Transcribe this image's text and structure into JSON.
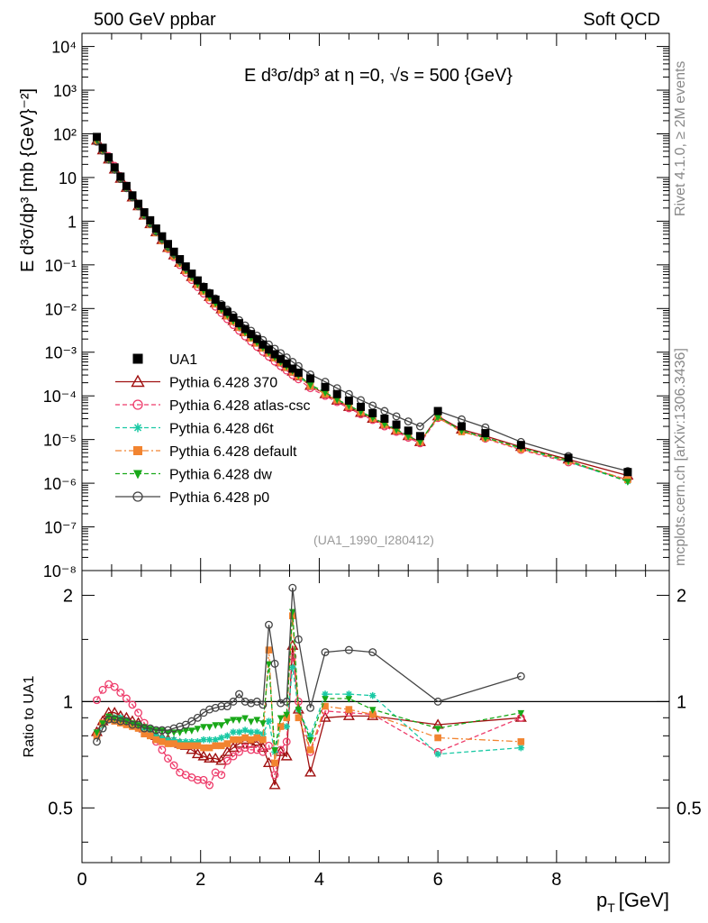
{
  "header": {
    "left": "500 GeV ppbar",
    "right": "Soft QCD"
  },
  "side": {
    "rivet": "Rivet 4.1.0, ≥ 2M events",
    "mcplots": "mcplots.cern.ch [arXiv:1306.3436]"
  },
  "chart_data": [
    {
      "type": "scatter",
      "title": "E d³σ/dp³ at η =0, √s = 500 {GeV}",
      "ylabel": "E d³σ/dp³ [mb {GeV}⁻²]",
      "yscale": "log",
      "ylim": [
        1e-08,
        20000.0
      ],
      "xlim": [
        0,
        9.9
      ],
      "ytick_labels": [
        "10⁻⁸",
        "10⁻⁷",
        "10⁻⁶",
        "10⁻⁵",
        "10⁻⁴",
        "10⁻³",
        "10⁻²",
        "10⁻¹",
        "1",
        "10",
        "10²",
        "10³",
        "10⁴"
      ],
      "watermark": "(UA1_1990_I280412)",
      "x": [
        0.25,
        0.35,
        0.45,
        0.55,
        0.65,
        0.75,
        0.85,
        0.95,
        1.05,
        1.15,
        1.25,
        1.35,
        1.45,
        1.55,
        1.65,
        1.75,
        1.85,
        1.95,
        2.05,
        2.15,
        2.25,
        2.35,
        2.45,
        2.55,
        2.65,
        2.75,
        2.85,
        2.95,
        3.05,
        3.15,
        3.25,
        3.35,
        3.45,
        3.55,
        3.65,
        3.85,
        4.1,
        4.3,
        4.5,
        4.7,
        4.9,
        5.1,
        5.3,
        5.5,
        5.7,
        6.0,
        6.4,
        6.8,
        7.4,
        8.2,
        9.2
      ],
      "series": [
        {
          "name": "UA1",
          "values": [
            85,
            48,
            29,
            17,
            10.5,
            6.4,
            3.9,
            2.5,
            1.6,
            1.05,
            0.68,
            0.45,
            0.3,
            0.2,
            0.135,
            0.092,
            0.063,
            0.044,
            0.031,
            0.022,
            0.016,
            0.0115,
            0.0084,
            0.0062,
            0.0046,
            0.0034,
            0.0026,
            0.002,
            0.0015,
            0.00115,
            0.0009,
            0.0007,
            0.00055,
            0.00042,
            0.00034,
            0.00025,
            0.00016,
            0.00011,
            7.8e-05,
            5.6e-05,
            4e-05,
            3e-05,
            2.2e-05,
            1.6e-05,
            1.2e-05,
            4.5e-05,
            2e-05,
            1.4e-05,
            7.5e-06,
            3.8e-06,
            1.8e-06
          ]
        },
        {
          "name": "Pythia 6.428 370",
          "values": [
            70,
            42,
            26,
            15.3,
            9.4,
            5.8,
            3.5,
            2.2,
            1.35,
            0.86,
            0.56,
            0.37,
            0.245,
            0.165,
            0.112,
            0.077,
            0.053,
            0.037,
            0.026,
            0.0185,
            0.0133,
            0.0096,
            0.007,
            0.0052,
            0.0038,
            0.0029,
            0.0022,
            0.00167,
            0.00128,
            0.00098,
            0.00076,
            0.00059,
            0.00046,
            0.00036,
            0.00028,
            0.00017,
            0.00011,
            7.8e-05,
            5.6e-05,
            4.1e-05,
            3e-05,
            2.2e-05,
            1.6e-05,
            1.2e-05,
            8.8e-06,
            3.4e-05,
            1.7e-05,
            1.2e-05,
            6.8e-06,
            3.5e-06,
            1.5e-06
          ]
        },
        {
          "name": "Pythia 6.428 atlas-csc",
          "values": [
            85,
            48,
            31,
            18.5,
            10.8,
            6.5,
            3.9,
            2.4,
            1.45,
            0.89,
            0.56,
            0.36,
            0.23,
            0.15,
            0.099,
            0.066,
            0.045,
            0.031,
            0.022,
            0.0155,
            0.011,
            0.0079,
            0.0057,
            0.0042,
            0.0031,
            0.0023,
            0.00175,
            0.00133,
            0.00102,
            0.00079,
            0.00061,
            0.00048,
            0.00038,
            0.0003,
            0.00024,
            0.00015,
            0.0001,
            7.2e-05,
            5.2e-05,
            3.8e-05,
            2.8e-05,
            2e-05,
            1.5e-05,
            1.1e-05,
            8.2e-06,
            3.1e-05,
            1.6e-05,
            1.05e-05,
            5.8e-06,
            3e-06,
            1.2e-06
          ]
        },
        {
          "name": "Pythia 6.428 d6t",
          "values": [
            72,
            44,
            26.5,
            15.5,
            9.5,
            5.8,
            3.5,
            2.2,
            1.35,
            0.85,
            0.55,
            0.36,
            0.24,
            0.16,
            0.108,
            0.074,
            0.051,
            0.035,
            0.025,
            0.0178,
            0.0128,
            0.0093,
            0.0068,
            0.005,
            0.0037,
            0.0028,
            0.0021,
            0.0016,
            0.00123,
            0.00095,
            0.00074,
            0.00058,
            0.00045,
            0.00035,
            0.00028,
            0.00017,
            0.00012,
            8.2e-05,
            5.9e-05,
            4.3e-05,
            3.1e-05,
            2.3e-05,
            1.7e-05,
            1.2e-05,
            9e-06,
            3.3e-05,
            1.6e-05,
            1.12e-05,
            6.2e-06,
            3.1e-06,
            1.1e-06
          ]
        },
        {
          "name": "Pythia 6.428 default",
          "values": [
            70,
            42,
            26,
            15.3,
            9.3,
            5.7,
            3.45,
            2.15,
            1.32,
            0.84,
            0.54,
            0.355,
            0.235,
            0.158,
            0.107,
            0.073,
            0.05,
            0.035,
            0.0245,
            0.0175,
            0.0126,
            0.0092,
            0.0067,
            0.005,
            0.0037,
            0.0028,
            0.0021,
            0.0016,
            0.00123,
            0.00095,
            0.00074,
            0.00058,
            0.00045,
            0.00035,
            0.00028,
            0.00017,
            0.00011,
            8e-05,
            5.7e-05,
            4.2e-05,
            3e-05,
            2.2e-05,
            1.6e-05,
            1.2e-05,
            8.8e-06,
            3.2e-05,
            1.5e-05,
            1.08e-05,
            6e-06,
            3.2e-06,
            1.2e-06
          ]
        },
        {
          "name": "Pythia 6.428 dw",
          "values": [
            72,
            43,
            26.5,
            15.5,
            9.5,
            5.8,
            3.5,
            2.2,
            1.35,
            0.86,
            0.56,
            0.37,
            0.245,
            0.165,
            0.112,
            0.077,
            0.053,
            0.037,
            0.026,
            0.0185,
            0.0134,
            0.0097,
            0.0071,
            0.0053,
            0.0039,
            0.0029,
            0.0022,
            0.0017,
            0.0013,
            0.001,
            0.00078,
            0.00061,
            0.00048,
            0.00038,
            0.0003,
            0.00018,
            0.00012,
            8.3e-05,
            6e-05,
            4.4e-05,
            3.2e-05,
            2.3e-05,
            1.7e-05,
            1.2e-05,
            9e-06,
            3.3e-05,
            1.6e-05,
            1.1e-05,
            6.5e-06,
            3.3e-06,
            1.1e-06
          ]
        },
        {
          "name": "Pythia 6.428 p0",
          "values": [
            66,
            41,
            25.5,
            15,
            9.2,
            5.7,
            3.5,
            2.2,
            1.37,
            0.88,
            0.58,
            0.39,
            0.26,
            0.18,
            0.124,
            0.087,
            0.061,
            0.044,
            0.032,
            0.023,
            0.017,
            0.0126,
            0.0094,
            0.0071,
            0.0054,
            0.0041,
            0.0031,
            0.0024,
            0.0019,
            0.0015,
            0.0012,
            0.00095,
            0.00076,
            0.0006,
            0.00048,
            0.00031,
            0.00021,
            0.00015,
            0.00011,
            8e-05,
            6e-05,
            4.5e-05,
            3.4e-05,
            2.6e-05,
            2e-05,
            4.5e-05,
            2.9e-05,
            1.9e-05,
            8.8e-06,
            4.2e-06,
            1.9e-06
          ]
        }
      ]
    },
    {
      "type": "line",
      "ylabel": "Ratio to UA1",
      "xlabel": "p_T [GeV]",
      "xlabel_main": "p",
      "xlabel_sub": "T",
      "xlabel_unit": "[GeV]",
      "ylim": [
        0.35,
        2.35
      ],
      "xlim": [
        0,
        9.9
      ],
      "yticks": [
        "0.5",
        "1",
        "2"
      ],
      "xticks": [
        "0",
        "2",
        "4",
        "6",
        "8"
      ],
      "x": [
        0.25,
        0.35,
        0.45,
        0.55,
        0.65,
        0.75,
        0.85,
        0.95,
        1.05,
        1.15,
        1.25,
        1.35,
        1.45,
        1.55,
        1.65,
        1.75,
        1.85,
        1.95,
        2.05,
        2.15,
        2.25,
        2.35,
        2.45,
        2.55,
        2.65,
        2.75,
        2.85,
        2.95,
        3.05,
        3.15,
        3.25,
        3.35,
        3.45,
        3.55,
        3.65,
        3.85,
        4.1,
        4.5,
        4.9,
        6.0,
        7.4
      ],
      "series": [
        {
          "name": "Pythia 6.428 370",
          "values": [
            0.82,
            0.88,
            0.93,
            0.93,
            0.91,
            0.9,
            0.88,
            0.87,
            0.84,
            0.82,
            0.8,
            0.79,
            0.78,
            0.77,
            0.76,
            0.75,
            0.73,
            0.71,
            0.7,
            0.69,
            0.69,
            0.68,
            0.72,
            0.74,
            0.76,
            0.78,
            0.76,
            0.77,
            0.74,
            0.67,
            0.58,
            0.72,
            0.7,
            1.44,
            0.95,
            0.63,
            0.9,
            0.91,
            0.91,
            0.86,
            0.9
          ]
        },
        {
          "name": "Pythia 6.428 atlas-csc",
          "values": [
            1.01,
            1.08,
            1.12,
            1.1,
            1.06,
            1.02,
            0.98,
            0.93,
            0.87,
            0.82,
            0.77,
            0.73,
            0.69,
            0.66,
            0.63,
            0.62,
            0.61,
            0.6,
            0.6,
            0.58,
            0.63,
            0.62,
            0.68,
            0.7,
            0.72,
            0.74,
            0.73,
            0.73,
            0.72,
            0.75,
            0.62,
            0.73,
            0.77,
            1.34,
            1.0,
            0.72,
            0.94,
            0.93,
            0.92,
            0.72,
            0.9
          ]
        },
        {
          "name": "Pythia 6.428 d6t",
          "values": [
            0.8,
            0.86,
            0.9,
            0.9,
            0.9,
            0.88,
            0.86,
            0.85,
            0.84,
            0.82,
            0.8,
            0.79,
            0.78,
            0.78,
            0.77,
            0.77,
            0.77,
            0.77,
            0.78,
            0.78,
            0.78,
            0.79,
            0.8,
            0.82,
            0.82,
            0.83,
            0.82,
            0.82,
            0.81,
            0.88,
            0.72,
            0.85,
            0.85,
            1.25,
            0.95,
            0.8,
            1.05,
            1.05,
            1.04,
            0.71,
            0.74
          ]
        },
        {
          "name": "Pythia 6.428 default",
          "values": [
            0.8,
            0.87,
            0.89,
            0.88,
            0.87,
            0.86,
            0.85,
            0.84,
            0.81,
            0.8,
            0.78,
            0.77,
            0.76,
            0.76,
            0.75,
            0.75,
            0.75,
            0.75,
            0.74,
            0.74,
            0.75,
            0.75,
            0.76,
            0.78,
            0.78,
            0.79,
            0.78,
            0.79,
            0.78,
            1.4,
            0.67,
            0.85,
            0.9,
            1.75,
            0.9,
            0.73,
            0.97,
            0.95,
            0.92,
            0.79,
            0.77
          ]
        },
        {
          "name": "Pythia 6.428 dw",
          "values": [
            0.82,
            0.87,
            0.91,
            0.9,
            0.89,
            0.88,
            0.87,
            0.86,
            0.85,
            0.84,
            0.83,
            0.83,
            0.82,
            0.82,
            0.82,
            0.83,
            0.83,
            0.84,
            0.85,
            0.85,
            0.86,
            0.86,
            0.88,
            0.89,
            0.89,
            0.9,
            0.88,
            0.89,
            0.87,
            1.28,
            0.73,
            0.9,
            0.92,
            1.8,
            0.95,
            0.78,
            1.02,
            1.02,
            0.95,
            0.84,
            0.93
          ]
        },
        {
          "name": "Pythia 6.428 p0",
          "values": [
            0.77,
            0.84,
            0.89,
            0.89,
            0.88,
            0.88,
            0.86,
            0.86,
            0.84,
            0.84,
            0.83,
            0.83,
            0.83,
            0.84,
            0.85,
            0.86,
            0.88,
            0.9,
            0.93,
            0.95,
            0.96,
            0.97,
            0.97,
            1.0,
            1.05,
            1.0,
            0.99,
            1.0,
            0.98,
            1.65,
            1.28,
            0.99,
            1.0,
            2.1,
            1.5,
            0.96,
            1.38,
            1.4,
            1.38,
            1.0,
            1.18
          ]
        }
      ]
    }
  ],
  "legend": {
    "items": [
      {
        "label": "UA1",
        "color": "#000000",
        "marker": "square-filled",
        "line": "none"
      },
      {
        "label": "Pythia 6.428 370",
        "color": "#a01010",
        "marker": "triangle-open",
        "line": "solid"
      },
      {
        "label": "Pythia 6.428 atlas-csc",
        "color": "#ee3b6a",
        "marker": "circle-open",
        "line": "dashed"
      },
      {
        "label": "Pythia 6.428 d6t",
        "color": "#19c9a4",
        "marker": "star",
        "line": "dashed"
      },
      {
        "label": "Pythia 6.428 default",
        "color": "#f28430",
        "marker": "square-filled",
        "line": "dashdot"
      },
      {
        "label": "Pythia 6.428 dw",
        "color": "#18a818",
        "marker": "triangle-down-filled",
        "line": "dashed"
      },
      {
        "label": "Pythia 6.428 p0",
        "color": "#444444",
        "marker": "circle-open",
        "line": "solid"
      }
    ]
  }
}
